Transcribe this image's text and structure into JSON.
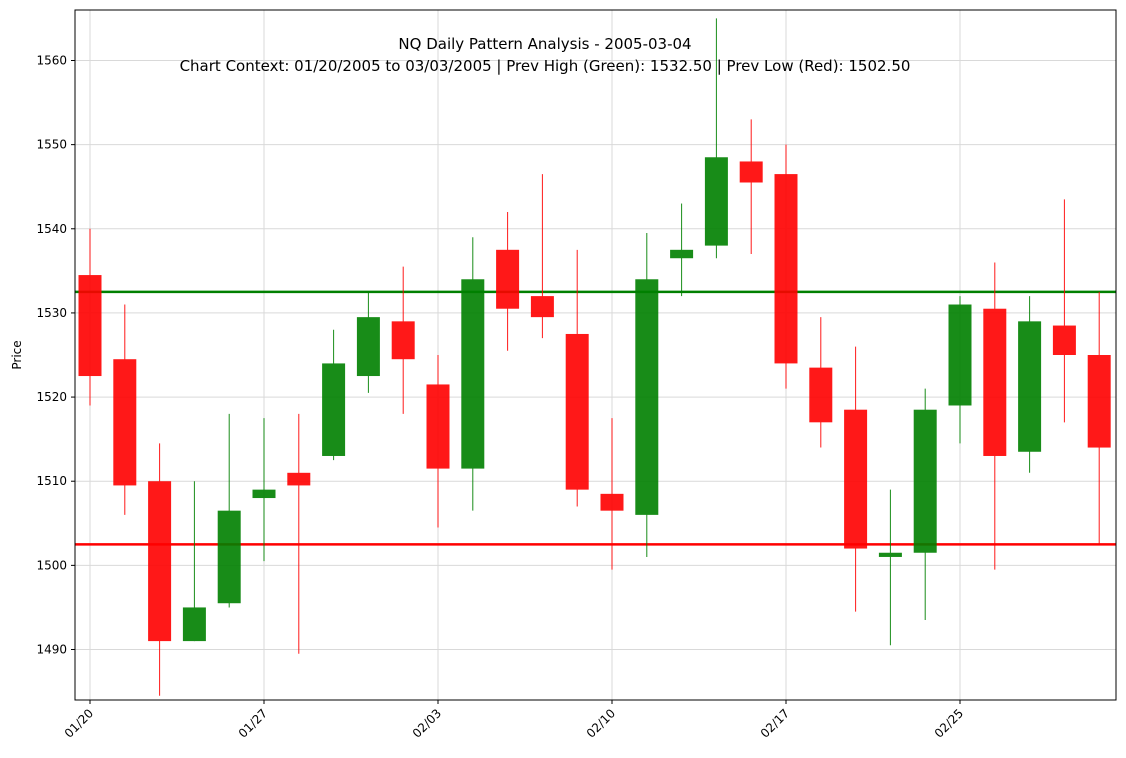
{
  "chart_data": {
    "type": "candlestick",
    "title": "NQ Daily Pattern Analysis - 2005-03-04",
    "subtitle": "Chart Context: 01/20/2005 to 03/03/2005 | Prev High (Green): 1532.50 | Prev Low (Red): 1502.50",
    "xlabel": "",
    "ylabel": "Price",
    "ylim": [
      1484,
      1566
    ],
    "yticks": [
      1490,
      1500,
      1510,
      1520,
      1530,
      1540,
      1550,
      1560
    ],
    "xtick_labels": [
      "01/20",
      "01/27",
      "02/03",
      "02/10",
      "02/17",
      "02/25"
    ],
    "xtick_positions": [
      0,
      5,
      10,
      15,
      20,
      25
    ],
    "grid": true,
    "colors": {
      "up": "#008000",
      "down": "#ff0000",
      "prev_high": "#008000",
      "prev_low": "#ff0000"
    },
    "reference_lines": [
      {
        "name": "Prev High",
        "value": 1532.5,
        "color": "#008000"
      },
      {
        "name": "Prev Low",
        "value": 1502.5,
        "color": "#ff0000"
      }
    ],
    "candles": [
      {
        "i": 0,
        "open": 1534.5,
        "high": 1540.0,
        "low": 1519.0,
        "close": 1522.5
      },
      {
        "i": 1,
        "open": 1524.5,
        "high": 1531.0,
        "low": 1506.0,
        "close": 1509.5
      },
      {
        "i": 2,
        "open": 1510.0,
        "high": 1514.5,
        "low": 1484.5,
        "close": 1491.0
      },
      {
        "i": 3,
        "open": 1491.0,
        "high": 1510.0,
        "low": 1491.0,
        "close": 1495.0
      },
      {
        "i": 4,
        "open": 1495.5,
        "high": 1518.0,
        "low": 1495.0,
        "close": 1506.5
      },
      {
        "i": 5,
        "open": 1508.0,
        "high": 1517.5,
        "low": 1500.5,
        "close": 1509.0
      },
      {
        "i": 6,
        "open": 1511.0,
        "high": 1518.0,
        "low": 1489.5,
        "close": 1509.5
      },
      {
        "i": 7,
        "open": 1513.0,
        "high": 1528.0,
        "low": 1512.5,
        "close": 1524.0
      },
      {
        "i": 8,
        "open": 1522.5,
        "high": 1532.5,
        "low": 1520.5,
        "close": 1529.5
      },
      {
        "i": 9,
        "open": 1529.0,
        "high": 1535.5,
        "low": 1518.0,
        "close": 1524.5
      },
      {
        "i": 10,
        "open": 1521.5,
        "high": 1525.0,
        "low": 1504.5,
        "close": 1511.5
      },
      {
        "i": 11,
        "open": 1511.5,
        "high": 1539.0,
        "low": 1506.5,
        "close": 1534.0
      },
      {
        "i": 12,
        "open": 1537.5,
        "high": 1542.0,
        "low": 1525.5,
        "close": 1530.5
      },
      {
        "i": 13,
        "open": 1532.0,
        "high": 1546.5,
        "low": 1527.0,
        "close": 1529.5
      },
      {
        "i": 14,
        "open": 1527.5,
        "high": 1537.5,
        "low": 1507.0,
        "close": 1509.0
      },
      {
        "i": 15,
        "open": 1508.5,
        "high": 1517.5,
        "low": 1499.5,
        "close": 1506.5
      },
      {
        "i": 16,
        "open": 1506.0,
        "high": 1539.5,
        "low": 1501.0,
        "close": 1534.0
      },
      {
        "i": 17,
        "open": 1536.5,
        "high": 1543.0,
        "low": 1532.0,
        "close": 1537.5
      },
      {
        "i": 18,
        "open": 1538.0,
        "high": 1565.0,
        "low": 1536.5,
        "close": 1548.5
      },
      {
        "i": 19,
        "open": 1548.0,
        "high": 1553.0,
        "low": 1537.0,
        "close": 1545.5
      },
      {
        "i": 20,
        "open": 1546.5,
        "high": 1550.0,
        "low": 1521.0,
        "close": 1524.0
      },
      {
        "i": 21,
        "open": 1523.5,
        "high": 1529.5,
        "low": 1514.0,
        "close": 1517.0
      },
      {
        "i": 22,
        "open": 1518.5,
        "high": 1526.0,
        "low": 1494.5,
        "close": 1502.0
      },
      {
        "i": 23,
        "open": 1501.0,
        "high": 1509.0,
        "low": 1490.5,
        "close": 1501.5
      },
      {
        "i": 24,
        "open": 1501.5,
        "high": 1521.0,
        "low": 1493.5,
        "close": 1518.5
      },
      {
        "i": 25,
        "open": 1519.0,
        "high": 1532.0,
        "low": 1514.5,
        "close": 1531.0
      },
      {
        "i": 26,
        "open": 1530.5,
        "high": 1536.0,
        "low": 1499.5,
        "close": 1513.0
      },
      {
        "i": 27,
        "open": 1513.5,
        "high": 1532.0,
        "low": 1511.0,
        "close": 1529.0
      },
      {
        "i": 28,
        "open": 1528.5,
        "high": 1543.5,
        "low": 1517.0,
        "close": 1525.0
      },
      {
        "i": 29,
        "open": 1525.0,
        "high": 1532.5,
        "low": 1502.5,
        "close": 1514.0
      }
    ]
  }
}
